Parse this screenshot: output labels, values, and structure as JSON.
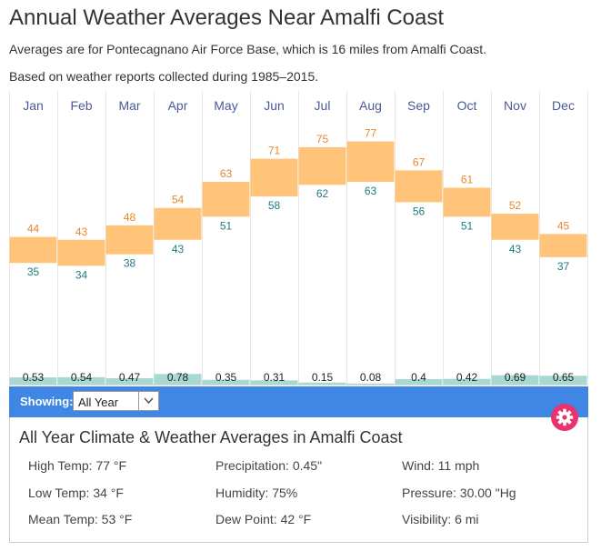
{
  "page": {
    "title": "Annual Weather Averages Near Amalfi Coast",
    "subtitle1": "Averages are for Pontecagnano Air Force Base, which is 16 miles from Amalfi Coast.",
    "subtitle2": "Based on weather reports collected during 1985–2015."
  },
  "chart_data": {
    "type": "bar",
    "categories": [
      "Jan",
      "Feb",
      "Mar",
      "Apr",
      "May",
      "Jun",
      "Jul",
      "Aug",
      "Sep",
      "Oct",
      "Nov",
      "Dec"
    ],
    "series": [
      {
        "name": "",
        "values": [
          44,
          43,
          48,
          54,
          63,
          71,
          75,
          77,
          67,
          61,
          52,
          45
        ]
      },
      {
        "name": "",
        "values": [
          35,
          34,
          38,
          43,
          51,
          58,
          62,
          63,
          56,
          51,
          43,
          37
        ]
      },
      {
        "name": "",
        "values": [
          0.53,
          0.54,
          0.47,
          0.78,
          0.35,
          0.31,
          0.15,
          0.08,
          0.4,
          0.42,
          0.69,
          0.65
        ]
      }
    ],
    "ylim": [
      20,
      85
    ],
    "colors": {
      "range": "#ffc479",
      "high": "#e8862e",
      "low": "#1f7a82",
      "precip": "#a8d8d2",
      "month": "#4a5a9a",
      "grid": "#e6e6e6"
    }
  },
  "controls": {
    "showing_label": "Showing:",
    "showing_value": "All Year"
  },
  "summary": {
    "title": "All Year Climate & Weather Averages in Amalfi Coast",
    "col1": [
      "High Temp: 77 °F",
      "Low Temp: 34 °F",
      "Mean Temp: 53 °F"
    ],
    "col2": [
      "Precipitation: 0.45\"",
      "Humidity: 75%",
      "Dew Point: 42 °F"
    ],
    "col3": [
      "Wind: 11 mph",
      "Pressure: 30.00 \"Hg",
      "Visibility: 6 mi"
    ]
  },
  "icons": {
    "gear": "gear-icon",
    "dropdown": "chevron-down-icon"
  }
}
